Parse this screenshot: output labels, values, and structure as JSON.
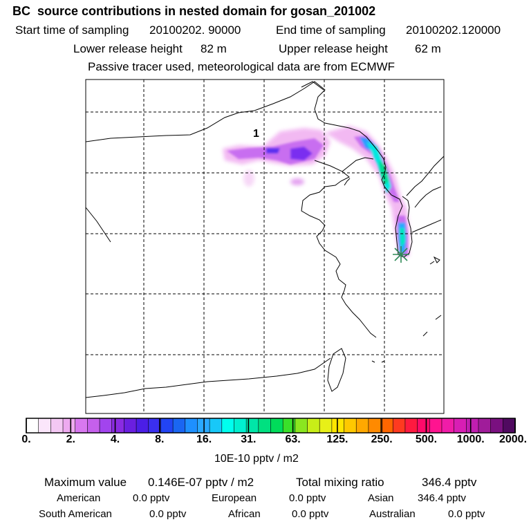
{
  "header": {
    "title": "BC  source contributions in nested domain for gosan_201002",
    "start_label": "Start time of sampling",
    "start_value": "20100202. 90000",
    "end_label": "End time of sampling",
    "end_value": "20100202.120000",
    "lower_label": "Lower release height",
    "lower_value": "82 m",
    "upper_label": "Upper release height",
    "upper_value": "62 m",
    "note": "Passive tracer used, meteorological data are from ECMWF"
  },
  "map": {
    "region_marker": "1",
    "receptor_marker_color": "#2e8b57"
  },
  "colorbar": {
    "labels": [
      "0.",
      "2.",
      "4.",
      "8.",
      "16.",
      "31.",
      "63.",
      "125.",
      "250.",
      "500.",
      "1000.",
      "2000."
    ],
    "colors": [
      "#ffffff",
      "#fbe6fb",
      "#f4c8f4",
      "#eeaaf0",
      "#d878f0",
      "#c560ec",
      "#a244ee",
      "#8a2be2",
      "#6a1fe0",
      "#4b1ee6",
      "#3a2ff0",
      "#2244f4",
      "#1a66f2",
      "#1e90ff",
      "#2aa8ff",
      "#18c8f8",
      "#00ffee",
      "#00f0d0",
      "#00e6a8",
      "#00e080",
      "#00dc5a",
      "#3ae02a",
      "#8ae620",
      "#c8ee18",
      "#e8f018",
      "#ffe600",
      "#ffc800",
      "#ffa800",
      "#ff8a00",
      "#ff6600",
      "#ff3a20",
      "#ff1a40",
      "#ff0a6a",
      "#ff1490",
      "#f01ca8",
      "#d81eb4",
      "#c01eb0",
      "#a01c9a",
      "#7a1080",
      "#500a60"
    ],
    "unit": "10E-10 pptv / m2"
  },
  "stats": {
    "max_label": "Maximum value",
    "max_value": "0.146E-07 pptv / m2",
    "total_label": "Total mixing ratio",
    "total_value": "346.4 pptv",
    "american_label": "American",
    "american_value": "0.0 pptv",
    "european_label": "European",
    "european_value": "0.0 pptv",
    "asian_label": "Asian",
    "asian_value": "346.4 pptv",
    "south_american_label": "South American",
    "south_american_value": "0.0 pptv",
    "african_label": "African",
    "african_value": "0.0 pptv",
    "australian_label": "Australian",
    "australian_value": "0.0 pptv"
  }
}
